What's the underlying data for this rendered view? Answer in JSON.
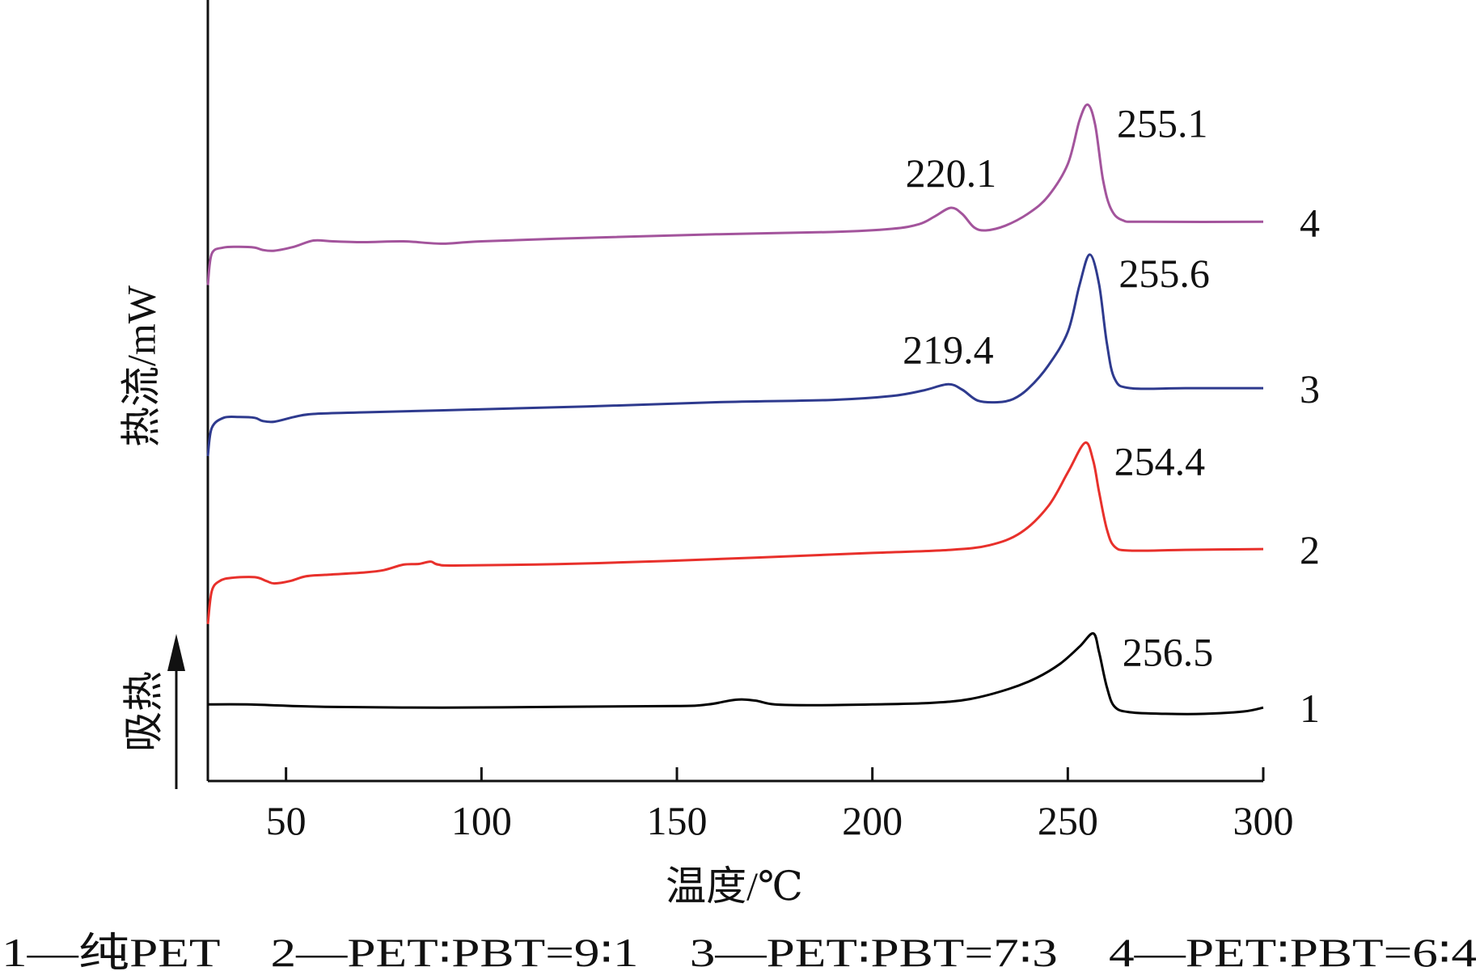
{
  "chart_data": {
    "type": "line",
    "xlabel": "温度/℃",
    "ylabel": "热流/mW",
    "endotherm_label": "吸热",
    "xlim": [
      30,
      300
    ],
    "x_ticks": [
      "50",
      "100",
      "150",
      "200",
      "250",
      "300"
    ],
    "y_scale": "arbitrary offset units (heat flow, curves stacked)",
    "ylim": [
      0,
      100
    ],
    "grid": false,
    "legend": "1—纯PET    2—PET∶PBT=9∶1    3—PET∶PBT=7∶3    4—PET∶PBT=6∶4",
    "series": [
      {
        "id": "1",
        "color": "#000000",
        "peak_label": "256.5",
        "points": [
          [
            30,
            9.8
          ],
          [
            40,
            9.8
          ],
          [
            60,
            9.5
          ],
          [
            90,
            9.4
          ],
          [
            120,
            9.5
          ],
          [
            150,
            9.6
          ],
          [
            158,
            9.8
          ],
          [
            165,
            10.4
          ],
          [
            170,
            10.3
          ],
          [
            175,
            9.8
          ],
          [
            185,
            9.7
          ],
          [
            200,
            9.8
          ],
          [
            215,
            10.0
          ],
          [
            225,
            10.5
          ],
          [
            235,
            11.8
          ],
          [
            242,
            13.2
          ],
          [
            248,
            15.0
          ],
          [
            253,
            17.2
          ],
          [
            256.5,
            18.9
          ],
          [
            258,
            16.5
          ],
          [
            260,
            12.0
          ],
          [
            262,
            9.5
          ],
          [
            266,
            8.8
          ],
          [
            275,
            8.6
          ],
          [
            285,
            8.6
          ],
          [
            295,
            8.9
          ],
          [
            300,
            9.4
          ]
        ]
      },
      {
        "id": "2",
        "color": "#e8302b",
        "peak_label": "254.4",
        "points": [
          [
            30,
            20.1
          ],
          [
            31,
            24.3
          ],
          [
            33,
            25.6
          ],
          [
            36,
            26.0
          ],
          [
            42,
            26.1
          ],
          [
            45,
            25.6
          ],
          [
            47,
            25.3
          ],
          [
            51,
            25.6
          ],
          [
            55,
            26.2
          ],
          [
            60,
            26.4
          ],
          [
            70,
            26.7
          ],
          [
            75,
            27.0
          ],
          [
            80,
            27.7
          ],
          [
            84,
            27.8
          ],
          [
            87,
            28.1
          ],
          [
            89,
            27.7
          ],
          [
            95,
            27.6
          ],
          [
            130,
            27.9
          ],
          [
            170,
            28.6
          ],
          [
            200,
            29.2
          ],
          [
            220,
            29.6
          ],
          [
            230,
            30.2
          ],
          [
            238,
            31.8
          ],
          [
            245,
            35.2
          ],
          [
            250,
            39.5
          ],
          [
            254.4,
            43.3
          ],
          [
            256.5,
            41.0
          ],
          [
            258,
            37.0
          ],
          [
            260,
            32.2
          ],
          [
            262,
            30.0
          ],
          [
            266,
            29.5
          ],
          [
            280,
            29.6
          ],
          [
            300,
            29.7
          ]
        ]
      },
      {
        "id": "3",
        "color": "#2e3a8e",
        "peak_label": "255.6",
        "peak_label_2": "219.4",
        "points": [
          [
            30,
            41.6
          ],
          [
            31,
            45.2
          ],
          [
            34,
            46.5
          ],
          [
            38,
            46.6
          ],
          [
            42,
            46.5
          ],
          [
            44,
            46.1
          ],
          [
            47,
            46.0
          ],
          [
            52,
            46.6
          ],
          [
            57,
            47.0
          ],
          [
            70,
            47.2
          ],
          [
            100,
            47.6
          ],
          [
            130,
            48.0
          ],
          [
            160,
            48.5
          ],
          [
            190,
            48.8
          ],
          [
            205,
            49.3
          ],
          [
            213,
            50.0
          ],
          [
            219.4,
            50.8
          ],
          [
            223,
            50.1
          ],
          [
            227,
            48.7
          ],
          [
            232,
            48.5
          ],
          [
            236,
            48.9
          ],
          [
            240,
            50.3
          ],
          [
            245,
            53.2
          ],
          [
            250,
            57.5
          ],
          [
            253,
            63.5
          ],
          [
            255.6,
            67.4
          ],
          [
            258,
            63.6
          ],
          [
            260,
            56.0
          ],
          [
            262,
            51.5
          ],
          [
            266,
            50.3
          ],
          [
            280,
            50.3
          ],
          [
            300,
            50.3
          ]
        ]
      },
      {
        "id": "4",
        "color": "#a3549c",
        "peak_label": "255.1",
        "peak_label_2": "220.1",
        "points": [
          [
            30,
            63.5
          ],
          [
            31,
            67.5
          ],
          [
            34,
            68.3
          ],
          [
            38,
            68.4
          ],
          [
            42,
            68.3
          ],
          [
            44,
            68.0
          ],
          [
            47,
            67.9
          ],
          [
            52,
            68.4
          ],
          [
            57,
            69.2
          ],
          [
            62,
            69.1
          ],
          [
            70,
            69.0
          ],
          [
            80,
            69.1
          ],
          [
            90,
            68.8
          ],
          [
            100,
            69.1
          ],
          [
            130,
            69.6
          ],
          [
            160,
            70.0
          ],
          [
            190,
            70.3
          ],
          [
            205,
            70.7
          ],
          [
            212,
            71.3
          ],
          [
            216,
            72.3
          ],
          [
            220.1,
            73.4
          ],
          [
            223,
            72.6
          ],
          [
            226,
            70.9
          ],
          [
            229,
            70.5
          ],
          [
            234,
            71.1
          ],
          [
            240,
            72.7
          ],
          [
            245,
            74.9
          ],
          [
            250,
            79.0
          ],
          [
            253,
            84.6
          ],
          [
            255.1,
            86.6
          ],
          [
            257,
            84.0
          ],
          [
            259,
            77.0
          ],
          [
            261,
            73.3
          ],
          [
            264,
            71.8
          ],
          [
            270,
            71.6
          ],
          [
            300,
            71.6
          ]
        ]
      }
    ]
  }
}
